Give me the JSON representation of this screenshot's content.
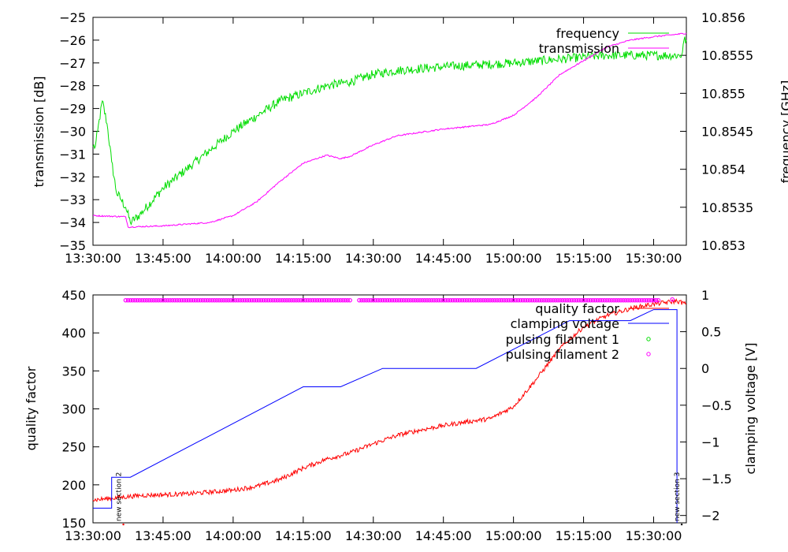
{
  "chart_data": [
    {
      "type": "line",
      "x_ticks": [
        "13:30:00",
        "13:45:00",
        "14:00:00",
        "14:15:00",
        "14:30:00",
        "14:45:00",
        "15:00:00",
        "15:15:00",
        "15:30:00"
      ],
      "xlim": [
        "13:30:00",
        "15:37:00"
      ],
      "ylabel": "transmission [dB]",
      "ylim": [
        -35,
        -25
      ],
      "y_ticks": [
        "-25",
        "-26",
        "-27",
        "-28",
        "-29",
        "-30",
        "-31",
        "-32",
        "-33",
        "-34",
        "-35"
      ],
      "y2label": "frequency [GHz]",
      "y2lim": [
        10.853,
        10.856
      ],
      "y2_ticks": [
        "10.856",
        "10.8555",
        "10.855",
        "10.8545",
        "10.854",
        "10.8535",
        "10.853"
      ],
      "legend_position": "top-right",
      "series": [
        {
          "name": "frequency",
          "axis": "y2",
          "color": "#00dd00",
          "noise": 6e-05,
          "points": [
            [
              "13:30:00",
              10.8543
            ],
            [
              "13:30:30",
              10.8543
            ],
            [
              "13:31:00",
              10.8545
            ],
            [
              "13:32:00",
              10.8549
            ],
            [
              "13:33:00",
              10.8546
            ],
            [
              "13:34:00",
              10.8541
            ],
            [
              "13:35:00",
              10.8537
            ],
            [
              "13:36:00",
              10.8536
            ],
            [
              "13:37:00",
              10.8535
            ],
            [
              "13:38:00",
              10.8533
            ],
            [
              "13:40:00",
              10.8534
            ],
            [
              "13:45:00",
              10.85375
            ],
            [
              "13:50:00",
              10.854
            ],
            [
              "13:55:00",
              10.85425
            ],
            [
              "14:00:00",
              10.8545
            ],
            [
              "14:05:00",
              10.8547
            ],
            [
              "14:10:00",
              10.8549
            ],
            [
              "14:15:00",
              10.855
            ],
            [
              "14:20:00",
              10.8551
            ],
            [
              "14:25:00",
              10.85515
            ],
            [
              "14:30:00",
              10.85525
            ],
            [
              "14:35:00",
              10.8553
            ],
            [
              "14:45:00",
              10.85535
            ],
            [
              "15:00:00",
              10.8554
            ],
            [
              "15:10:00",
              10.85545
            ],
            [
              "15:20:00",
              10.8555
            ],
            [
              "15:36:00",
              10.8555
            ],
            [
              "15:36:30",
              10.8557
            ],
            [
              "15:37:00",
              10.8557
            ]
          ]
        },
        {
          "name": "transmission",
          "axis": "y",
          "color": "#ff00ff",
          "noise": 0.03,
          "points": [
            [
              "13:30:00",
              -33.7
            ],
            [
              "13:37:00",
              -33.75
            ],
            [
              "13:37:30",
              -34.2
            ],
            [
              "13:45:00",
              -34.15
            ],
            [
              "13:55:00",
              -34.0
            ],
            [
              "14:00:00",
              -33.7
            ],
            [
              "14:05:00",
              -33.1
            ],
            [
              "14:10:00",
              -32.2
            ],
            [
              "14:15:00",
              -31.4
            ],
            [
              "14:20:00",
              -31.05
            ],
            [
              "14:23:00",
              -31.2
            ],
            [
              "14:25:00",
              -31.1
            ],
            [
              "14:30:00",
              -30.6
            ],
            [
              "14:35:00",
              -30.2
            ],
            [
              "14:45:00",
              -29.9
            ],
            [
              "14:55:00",
              -29.7
            ],
            [
              "15:00:00",
              -29.3
            ],
            [
              "15:05:00",
              -28.5
            ],
            [
              "15:10:00",
              -27.5
            ],
            [
              "15:15:00",
              -26.9
            ],
            [
              "15:20:00",
              -26.3
            ],
            [
              "15:25:00",
              -26.0
            ],
            [
              "15:30:00",
              -25.85
            ],
            [
              "15:37:00",
              -25.7
            ]
          ]
        }
      ]
    },
    {
      "type": "line",
      "x_ticks": [
        "13:30:00",
        "13:45:00",
        "14:00:00",
        "14:15:00",
        "14:30:00",
        "14:45:00",
        "15:00:00",
        "15:15:00",
        "15:30:00"
      ],
      "xlim": [
        "13:30:00",
        "15:37:00"
      ],
      "ylabel": "quality factor",
      "ylim": [
        150,
        450
      ],
      "y_ticks": [
        "450",
        "400",
        "350",
        "300",
        "250",
        "200",
        "150"
      ],
      "y2label": "clamping voltage [V]",
      "y2lim": [
        -2.1,
        1.0
      ],
      "y2_ticks": [
        "1",
        "0.5",
        "0",
        "-0.5",
        "-1",
        "-1.5",
        "-2"
      ],
      "legend_position": "top-right",
      "series": [
        {
          "name": "quality factor",
          "axis": "y",
          "color": "#ff0000",
          "noise": 3,
          "points": [
            [
              "13:30:00",
              180
            ],
            [
              "13:40:00",
              186
            ],
            [
              "13:50:00",
              188
            ],
            [
              "14:00:00",
              193
            ],
            [
              "14:05:00",
              198
            ],
            [
              "14:10:00",
              207
            ],
            [
              "14:15:00",
              222
            ],
            [
              "14:20:00",
              234
            ],
            [
              "14:25:00",
              242
            ],
            [
              "14:30:00",
              254
            ],
            [
              "14:35:00",
              265
            ],
            [
              "14:40:00",
              272
            ],
            [
              "14:45:00",
              278
            ],
            [
              "14:50:00",
              283
            ],
            [
              "14:55:00",
              287
            ],
            [
              "15:00:00",
              303
            ],
            [
              "15:05:00",
              340
            ],
            [
              "15:10:00",
              380
            ],
            [
              "15:15:00",
              408
            ],
            [
              "15:20:00",
              423
            ],
            [
              "15:25:00",
              432
            ],
            [
              "15:30:00",
              438
            ],
            [
              "15:35:00",
              442
            ],
            [
              "15:37:00",
              438
            ]
          ]
        },
        {
          "name": "clamping voltage",
          "axis": "y2",
          "color": "#0000ff",
          "noise": 0,
          "points": [
            [
              "13:30:00",
              -1.9
            ],
            [
              "13:34:00",
              -1.9
            ],
            [
              "13:34:00",
              -1.48
            ],
            [
              "13:38:00",
              -1.48
            ],
            [
              "14:15:00",
              -0.25
            ],
            [
              "14:23:00",
              -0.25
            ],
            [
              "14:32:00",
              0.0
            ],
            [
              "14:52:00",
              0.0
            ],
            [
              "15:12:00",
              0.65
            ],
            [
              "15:25:00",
              0.65
            ],
            [
              "15:30:00",
              0.8
            ],
            [
              "15:35:00",
              0.8
            ],
            [
              "15:35:00",
              -2.1
            ]
          ]
        },
        {
          "name": "pulsing filament 1",
          "axis": "y",
          "color": "#00dd00",
          "marker": "circle",
          "points": []
        },
        {
          "name": "pulsing filament 2",
          "axis": "y",
          "color": "#ff00ff",
          "marker": "circle",
          "y_value": 443,
          "segments": [
            [
              "13:37:00",
              "14:25:00"
            ],
            [
              "14:27:00",
              "15:31:00"
            ]
          ],
          "extra_points": [
            [
              "15:34:00",
              444
            ]
          ]
        }
      ],
      "annotations": [
        {
          "text": "new section 2",
          "x": "13:36:00",
          "y": 152,
          "color": "#ff0000"
        },
        {
          "text": "new section 3",
          "x": "15:35:30",
          "y": 152,
          "color": "#000000"
        }
      ]
    }
  ]
}
